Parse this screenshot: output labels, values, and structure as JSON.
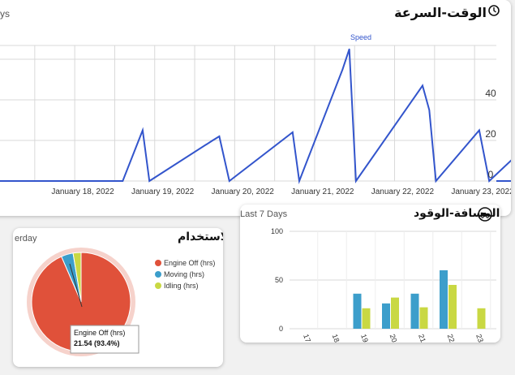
{
  "speed_card": {
    "title": "الوقت-السرعة",
    "range_fragment": "ys",
    "legend": "Speed"
  },
  "usage_card": {
    "title": "الاستخدام",
    "range_fragment": "erday",
    "legend": [
      "Engine Off (hrs)",
      "Moving (hrs)",
      "Idling (hrs)"
    ],
    "tooltip": {
      "label": "Engine Off (hrs)",
      "value": "21.54 (93.4%)"
    }
  },
  "fuel_card": {
    "title": "المسافة-الوقود",
    "range": "Last 7 Days"
  },
  "colors": {
    "speed": "#3355cc",
    "engine_off": "#e0513a",
    "moving": "#3c9ecb",
    "idling": "#c9d843",
    "grid": "#d8d8d8",
    "axis_text": "#333333"
  },
  "icons": [
    "clock-icon",
    "truck-icon"
  ],
  "chart_data": [
    {
      "type": "line",
      "series": [
        {
          "name": "Speed",
          "points": [
            [
              "2022-01-18T12:00",
              0
            ],
            [
              "2022-01-18T18:00",
              25
            ],
            [
              "2022-01-18T20:00",
              0
            ],
            [
              "2022-01-19T15:00",
              20
            ],
            [
              "2022-01-19T17:00",
              22
            ],
            [
              "2022-01-19T20:00",
              0
            ],
            [
              "2022-01-20T15:00",
              24
            ],
            [
              "2022-01-20T17:00",
              0
            ],
            [
              "2022-01-21T06:00",
              55
            ],
            [
              "2022-01-21T08:00",
              65
            ],
            [
              "2022-01-21T10:00",
              0
            ],
            [
              "2022-01-22T06:00",
              47
            ],
            [
              "2022-01-22T08:00",
              35
            ],
            [
              "2022-01-22T10:00",
              0
            ],
            [
              "2022-01-22T23:00",
              25
            ],
            [
              "2022-01-23T02:00",
              0
            ],
            [
              "2022-01-23T15:00",
              20
            ],
            [
              "2022-01-23T17:00",
              19
            ],
            [
              "2022-01-23T20:00",
              0
            ]
          ]
        }
      ],
      "x_ticks": [
        "January 18, 2022",
        "January 19, 2022",
        "January 20, 2022",
        "January 21, 2022",
        "January 22, 2022",
        "January 23, 2022"
      ],
      "y_ticks": [
        0,
        20,
        40
      ],
      "ylim": [
        0,
        65
      ],
      "grid": true,
      "legend": "top-center"
    },
    {
      "type": "pie",
      "slices": [
        {
          "label": "Engine Off (hrs)",
          "value": 21.54,
          "percent": 93.4
        },
        {
          "label": "Moving (hrs)",
          "value": 0.9
        },
        {
          "label": "Idling (hrs)",
          "value": 0.6
        }
      ],
      "legend": "right"
    },
    {
      "type": "bar",
      "categories": [
        "17",
        "18",
        "19",
        "20",
        "21",
        "22",
        "23"
      ],
      "series": [
        {
          "values": [
            0,
            36,
            26,
            36,
            60,
            0,
            0
          ]
        },
        {
          "values": [
            0,
            21,
            32,
            22,
            45,
            21,
            12
          ]
        }
      ],
      "y_ticks": [
        0,
        50,
        100
      ],
      "ylim": [
        0,
        100
      ],
      "grid": true
    }
  ]
}
